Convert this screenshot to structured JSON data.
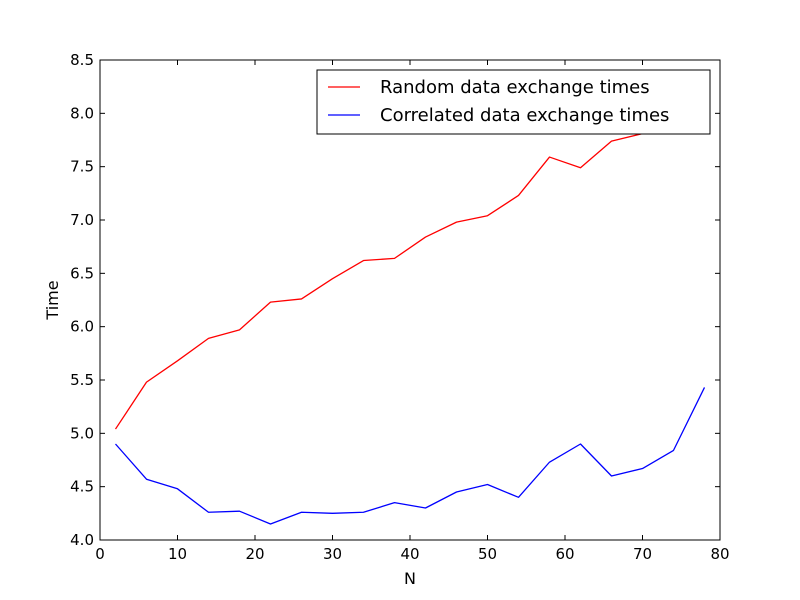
{
  "chart_data": {
    "type": "line",
    "title": "",
    "xlabel": "N",
    "ylabel": "Time",
    "xlim": [
      0,
      80
    ],
    "ylim": [
      4.0,
      8.5
    ],
    "xticks": [
      0,
      10,
      20,
      30,
      40,
      50,
      60,
      70,
      80
    ],
    "yticks": [
      4.0,
      4.5,
      5.0,
      5.5,
      6.0,
      6.5,
      7.0,
      7.5,
      8.0,
      8.5
    ],
    "xtick_labels": [
      "0",
      "10",
      "20",
      "30",
      "40",
      "50",
      "60",
      "70",
      "80"
    ],
    "ytick_labels": [
      "4.0",
      "4.5",
      "5.0",
      "5.5",
      "6.0",
      "6.5",
      "7.0",
      "7.5",
      "8.0",
      "8.5"
    ],
    "grid": false,
    "legend_position": "top-right",
    "x": [
      2,
      6,
      10,
      14,
      18,
      22,
      26,
      30,
      34,
      38,
      42,
      46,
      50,
      54,
      58,
      62,
      66,
      70,
      74,
      78
    ],
    "series": [
      {
        "name": "Random data exchange times",
        "color": "#ff0000",
        "values": [
          5.04,
          5.48,
          5.68,
          5.89,
          5.97,
          6.23,
          6.26,
          6.45,
          6.62,
          6.64,
          6.84,
          6.98,
          7.04,
          7.23,
          7.59,
          7.49,
          7.74,
          7.81,
          7.86,
          7.9
        ]
      },
      {
        "name": "Correlated data exchange times",
        "color": "#0000ff",
        "values": [
          4.9,
          4.57,
          4.48,
          4.26,
          4.27,
          4.15,
          4.26,
          4.25,
          4.26,
          4.35,
          4.3,
          4.45,
          4.52,
          4.4,
          4.73,
          4.9,
          4.6,
          4.67,
          4.84,
          5.43
        ]
      }
    ]
  }
}
